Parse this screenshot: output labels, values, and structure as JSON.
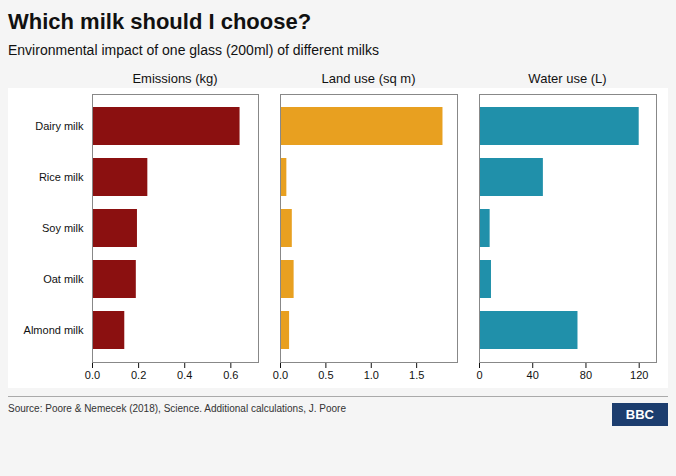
{
  "title": "Which milk should I choose?",
  "subtitle": "Environmental impact of one glass (200ml) of different milks",
  "annotations": [
    "Source: Poore & Nemecek (2018), Science. Additional calculations, J. Poore",
    "BBC"
  ],
  "chart_data": [
    {
      "type": "bar",
      "orientation": "horizontal",
      "title": "Emissions (kg)",
      "categories": [
        "Dairy milk",
        "Rice milk",
        "Soy milk",
        "Oat milk",
        "Almond milk"
      ],
      "values": [
        0.64,
        0.24,
        0.195,
        0.19,
        0.14
      ],
      "color": "#8B1010",
      "xlim": [
        0,
        0.72
      ],
      "xticks": [
        {
          "value": 0.0,
          "label": "0.0"
        },
        0.2,
        0.4,
        0.6
      ]
    },
    {
      "type": "bar",
      "orientation": "horizontal",
      "title": "Land use (sq m)",
      "categories": [
        "Dairy milk",
        "Rice milk",
        "Soy milk",
        "Oat milk",
        "Almond milk"
      ],
      "values": [
        1.79,
        0.07,
        0.13,
        0.15,
        0.1
      ],
      "color": "#E8A020",
      "xlim": [
        0,
        1.95
      ],
      "xticks": [
        {
          "value": 0.0,
          "label": "0.0"
        },
        0.5,
        {
          "value": 1.0,
          "label": "1.0"
        },
        1.5
      ],
      "tick_labels": "x"
    },
    {
      "type": "bar",
      "orientation": "horizontal",
      "title": "Water use (L)",
      "categories": [
        "Dairy milk",
        "Rice milk",
        "Soy milk",
        "Oat milk",
        "Almond milk"
      ],
      "values": [
        120.0,
        48.0,
        8.0,
        9.0,
        74.0
      ],
      "color": "#2090AA",
      "xlim": [
        0,
        133
      ],
      "xticks": [
        0,
        40,
        80,
        120
      ],
      "tick_labels": "x"
    }
  ]
}
